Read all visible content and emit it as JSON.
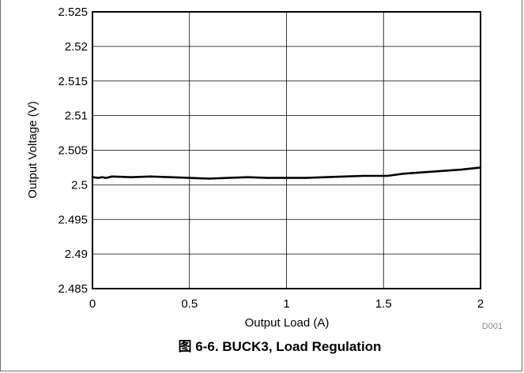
{
  "figure": {
    "code": "D001",
    "caption": "图 6-6. BUCK3, Load Regulation"
  },
  "chart_data": {
    "type": "line",
    "title": "",
    "xlabel": "Output Load (A)",
    "ylabel": "Output Voltage (V)",
    "xlim": [
      0,
      2
    ],
    "ylim": [
      2.485,
      2.525
    ],
    "xticks": [
      0,
      0.5,
      1,
      1.5,
      2
    ],
    "xtick_labels": [
      "0",
      "0.5",
      "1",
      "1.5",
      "2"
    ],
    "yticks": [
      2.485,
      2.49,
      2.495,
      2.5,
      2.505,
      2.51,
      2.515,
      2.52,
      2.525
    ],
    "ytick_labels": [
      "2.485",
      "2.49",
      "2.495",
      "2.5",
      "2.505",
      "2.51",
      "2.515",
      "2.52",
      "2.525"
    ],
    "grid": true,
    "legend": "none",
    "series": [
      {
        "color": "#000000",
        "x": [
          0,
          0.03,
          0.05,
          0.07,
          0.1,
          0.2,
          0.3,
          0.4,
          0.5,
          0.6,
          0.7,
          0.8,
          0.9,
          1.0,
          1.1,
          1.2,
          1.3,
          1.4,
          1.5,
          1.52,
          1.6,
          1.7,
          1.8,
          1.9,
          2.0
        ],
        "y": [
          2.5011,
          2.501,
          2.5011,
          2.501,
          2.5012,
          2.5011,
          2.5012,
          2.5011,
          2.501,
          2.5009,
          2.501,
          2.5011,
          2.501,
          2.501,
          2.501,
          2.5011,
          2.5012,
          2.5013,
          2.5013,
          2.5013,
          2.5016,
          2.5018,
          2.502,
          2.5022,
          2.5025
        ]
      }
    ]
  }
}
